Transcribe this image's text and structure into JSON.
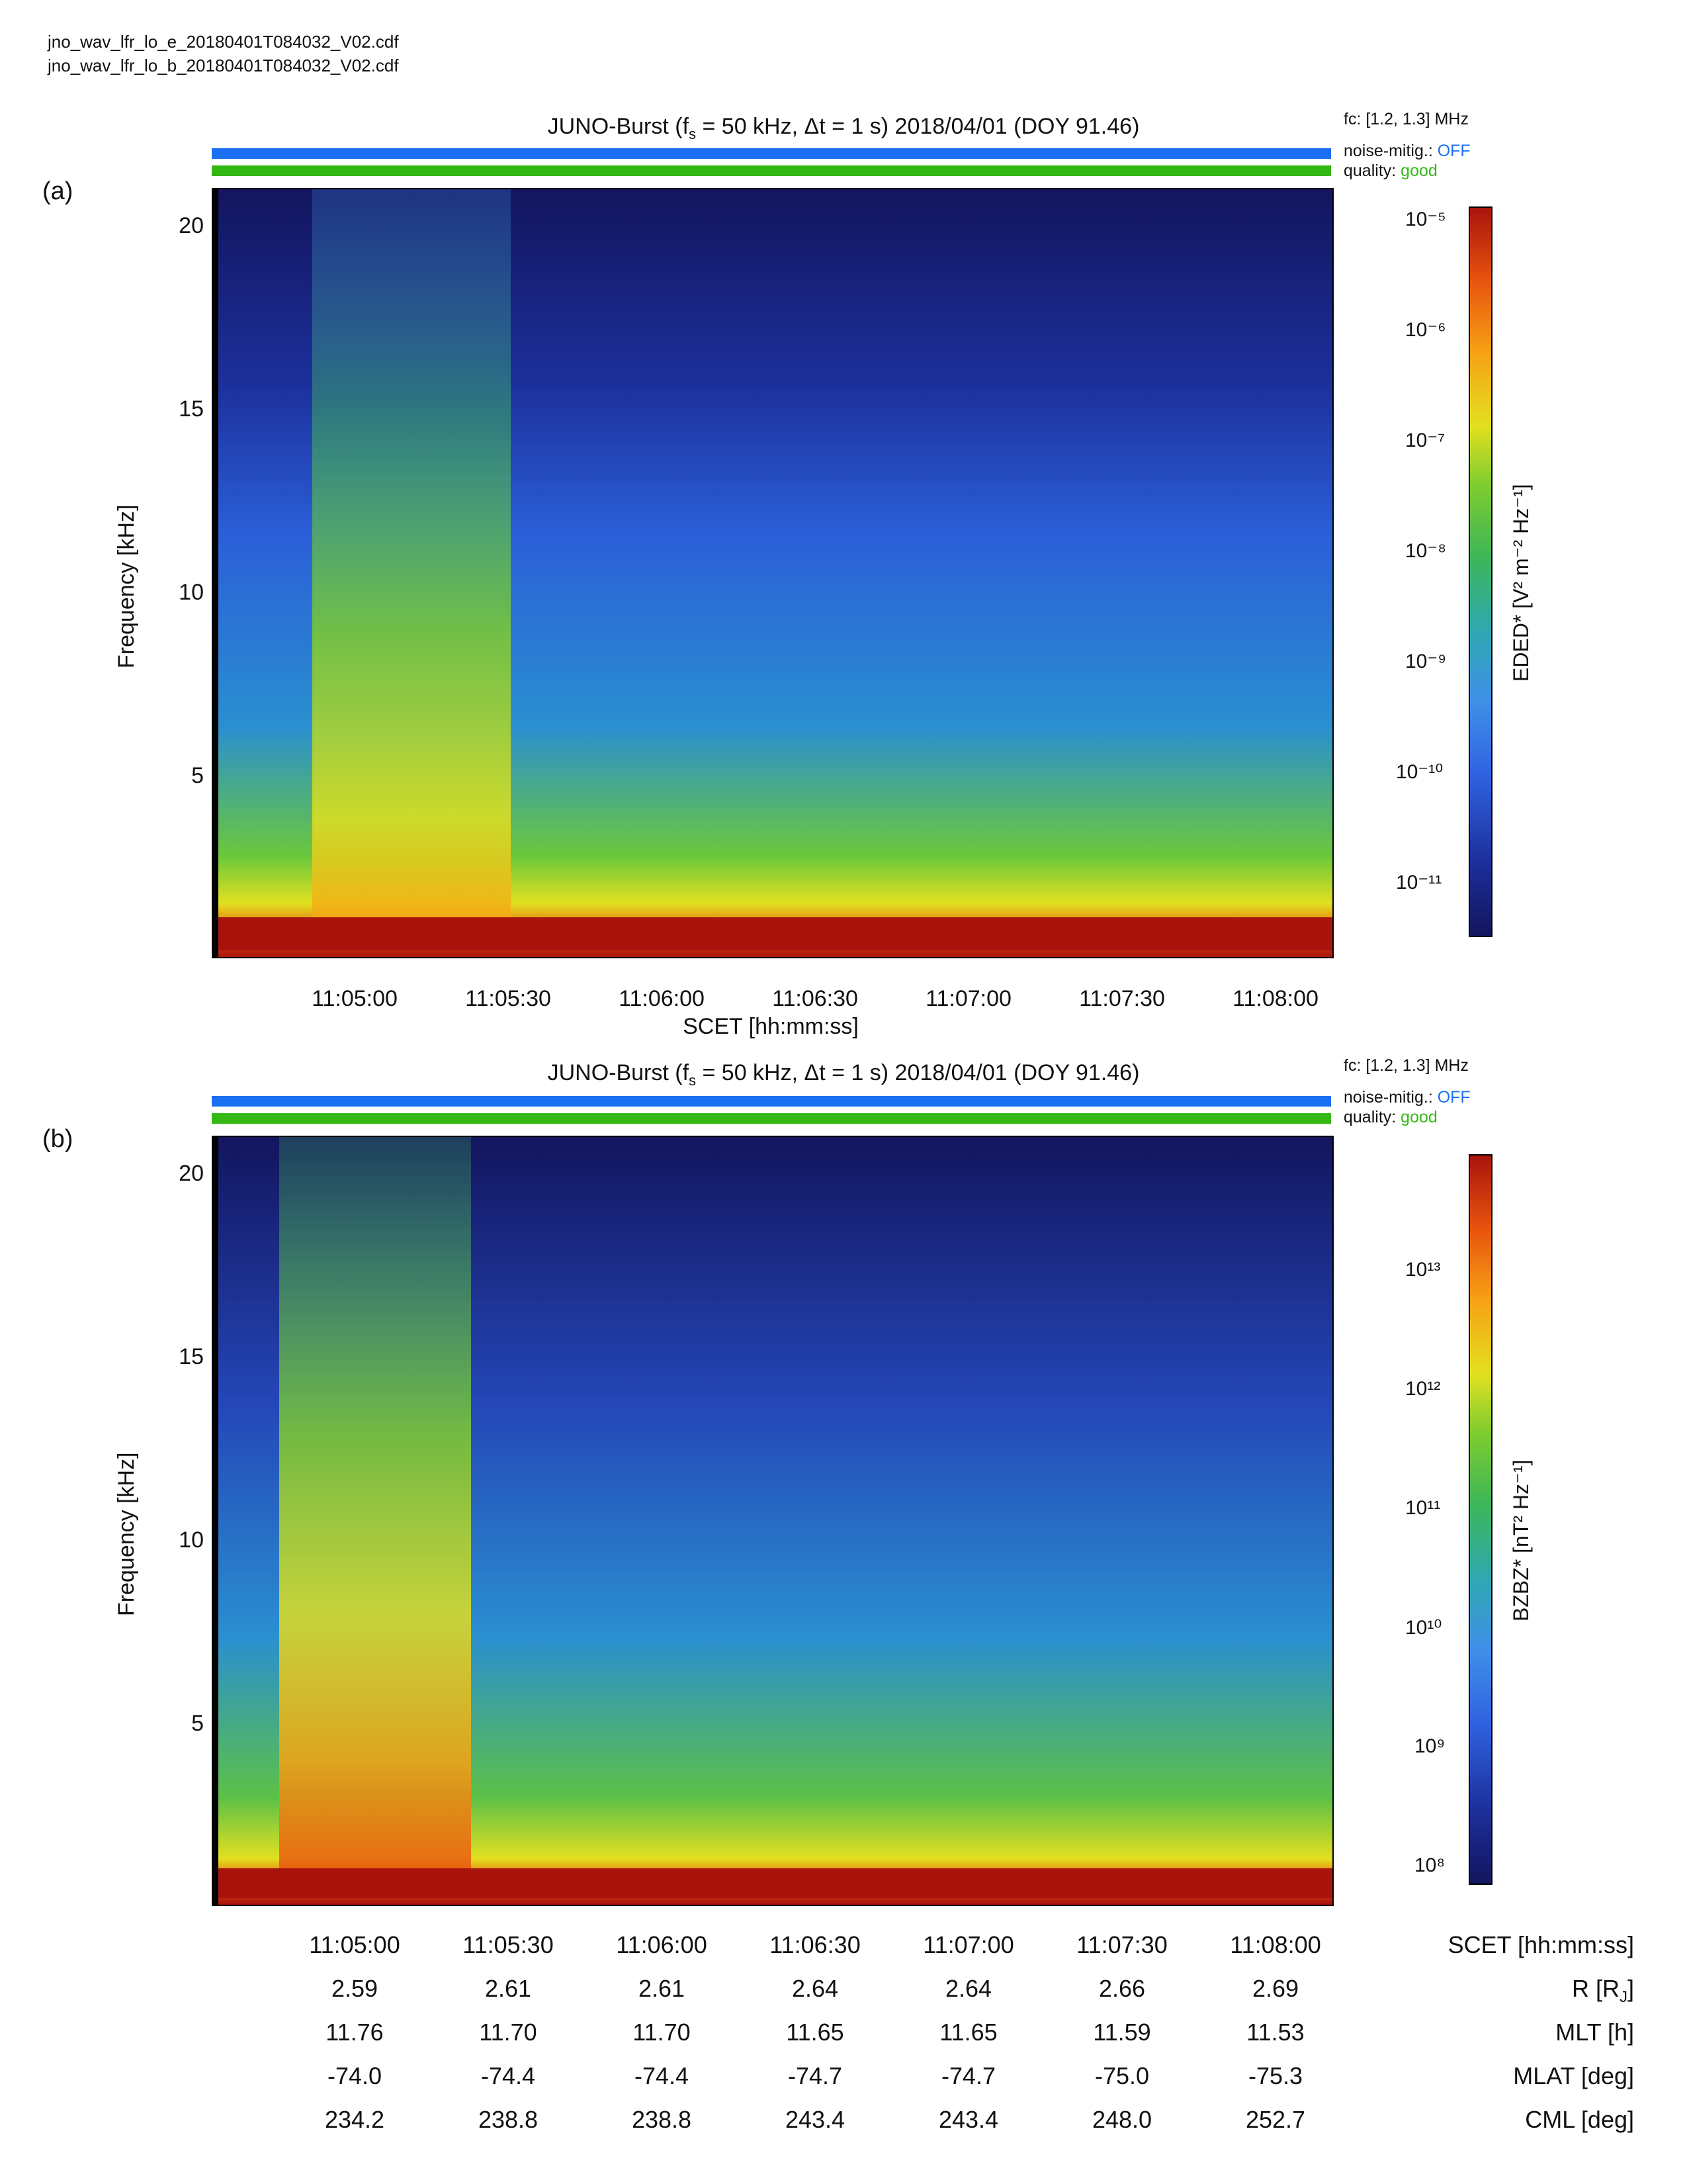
{
  "files": [
    "jno_wav_lfr_lo_e_20180401T084032_V02.cdf",
    "jno_wav_lfr_lo_b_20180401T084032_V02.cdf"
  ],
  "status": {
    "fc": "fᴄ: [1.2, 1.3] MHz",
    "noise_label": "noise-mitig.:",
    "noise_value": "OFF",
    "quality_label": "quality:",
    "quality_value": "good",
    "colors": {
      "noise_bar": "#1a6ff2",
      "quality_bar": "#33b814"
    }
  },
  "chart_data": [
    {
      "panel": "(a)",
      "type": "heatmap",
      "title": "JUNO-Burst (fs = 50 kHz, Δt = 1 s)  2018/04/01 (DOY 91.46)",
      "xlabel": "SCET [hh:mm:ss]",
      "ylabel": "Frequency [kHz]",
      "ylim": [
        0,
        21
      ],
      "yticks": [
        "5",
        "10",
        "15",
        "20"
      ],
      "xticks": [
        "11:05:00",
        "11:05:30",
        "11:06:00",
        "11:06:30",
        "11:07:00",
        "11:07:30",
        "11:08:00"
      ],
      "colorbar": {
        "label": "EDED* [V² m⁻² Hz⁻¹]",
        "scale": "log",
        "ticks": [
          "10⁻⁵",
          "10⁻⁶",
          "10⁻⁷",
          "10⁻⁸",
          "10⁻⁹",
          "10⁻¹⁰",
          "10⁻¹¹"
        ]
      },
      "features": {
        "low_freq_band_kHz": [
          0,
          1
        ],
        "enhanced_intervals": [
          "11:04:45",
          "11:05:35"
        ]
      }
    },
    {
      "panel": "(b)",
      "type": "heatmap",
      "title": "JUNO-Burst (fs = 50 kHz, Δt = 1 s)  2018/04/01 (DOY 91.46)",
      "xlabel": "SCET [hh:mm:ss]",
      "ylabel": "Frequency [kHz]",
      "ylim": [
        0,
        21
      ],
      "yticks": [
        "5",
        "10",
        "15",
        "20"
      ],
      "xticks": [
        "11:05:00",
        "11:05:30",
        "11:06:00",
        "11:06:30",
        "11:07:00",
        "11:07:30",
        "11:08:00"
      ],
      "colorbar": {
        "label": "BZBZ* [nT² Hz⁻¹]",
        "scale": "log",
        "ticks": [
          "10¹³",
          "10¹²",
          "10¹¹",
          "10¹⁰",
          "10⁹",
          "10⁸"
        ]
      },
      "features": {
        "low_freq_band_kHz": [
          0,
          1
        ],
        "enhanced_intervals": [
          "11:04:45",
          "11:05:20"
        ]
      }
    }
  ],
  "ephemeris": {
    "rows": [
      {
        "label": "SCET [hh:mm:ss]",
        "values": [
          "11:05:00",
          "11:05:30",
          "11:06:00",
          "11:06:30",
          "11:07:00",
          "11:07:30",
          "11:08:00"
        ]
      },
      {
        "label": "R [RJ]",
        "values": [
          "2.59",
          "2.61",
          "2.61",
          "2.64",
          "2.64",
          "2.66",
          "2.69"
        ]
      },
      {
        "label": "MLT [h]",
        "values": [
          "11.76",
          "11.70",
          "11.70",
          "11.65",
          "11.65",
          "11.59",
          "11.53"
        ]
      },
      {
        "label": "MLAT [deg]",
        "values": [
          "-74.0",
          "-74.4",
          "-74.4",
          "-74.7",
          "-74.7",
          "-75.0",
          "-75.3"
        ]
      },
      {
        "label": "CML [deg]",
        "values": [
          "234.2",
          "238.8",
          "238.8",
          "243.4",
          "243.4",
          "248.0",
          "252.7"
        ]
      }
    ]
  }
}
